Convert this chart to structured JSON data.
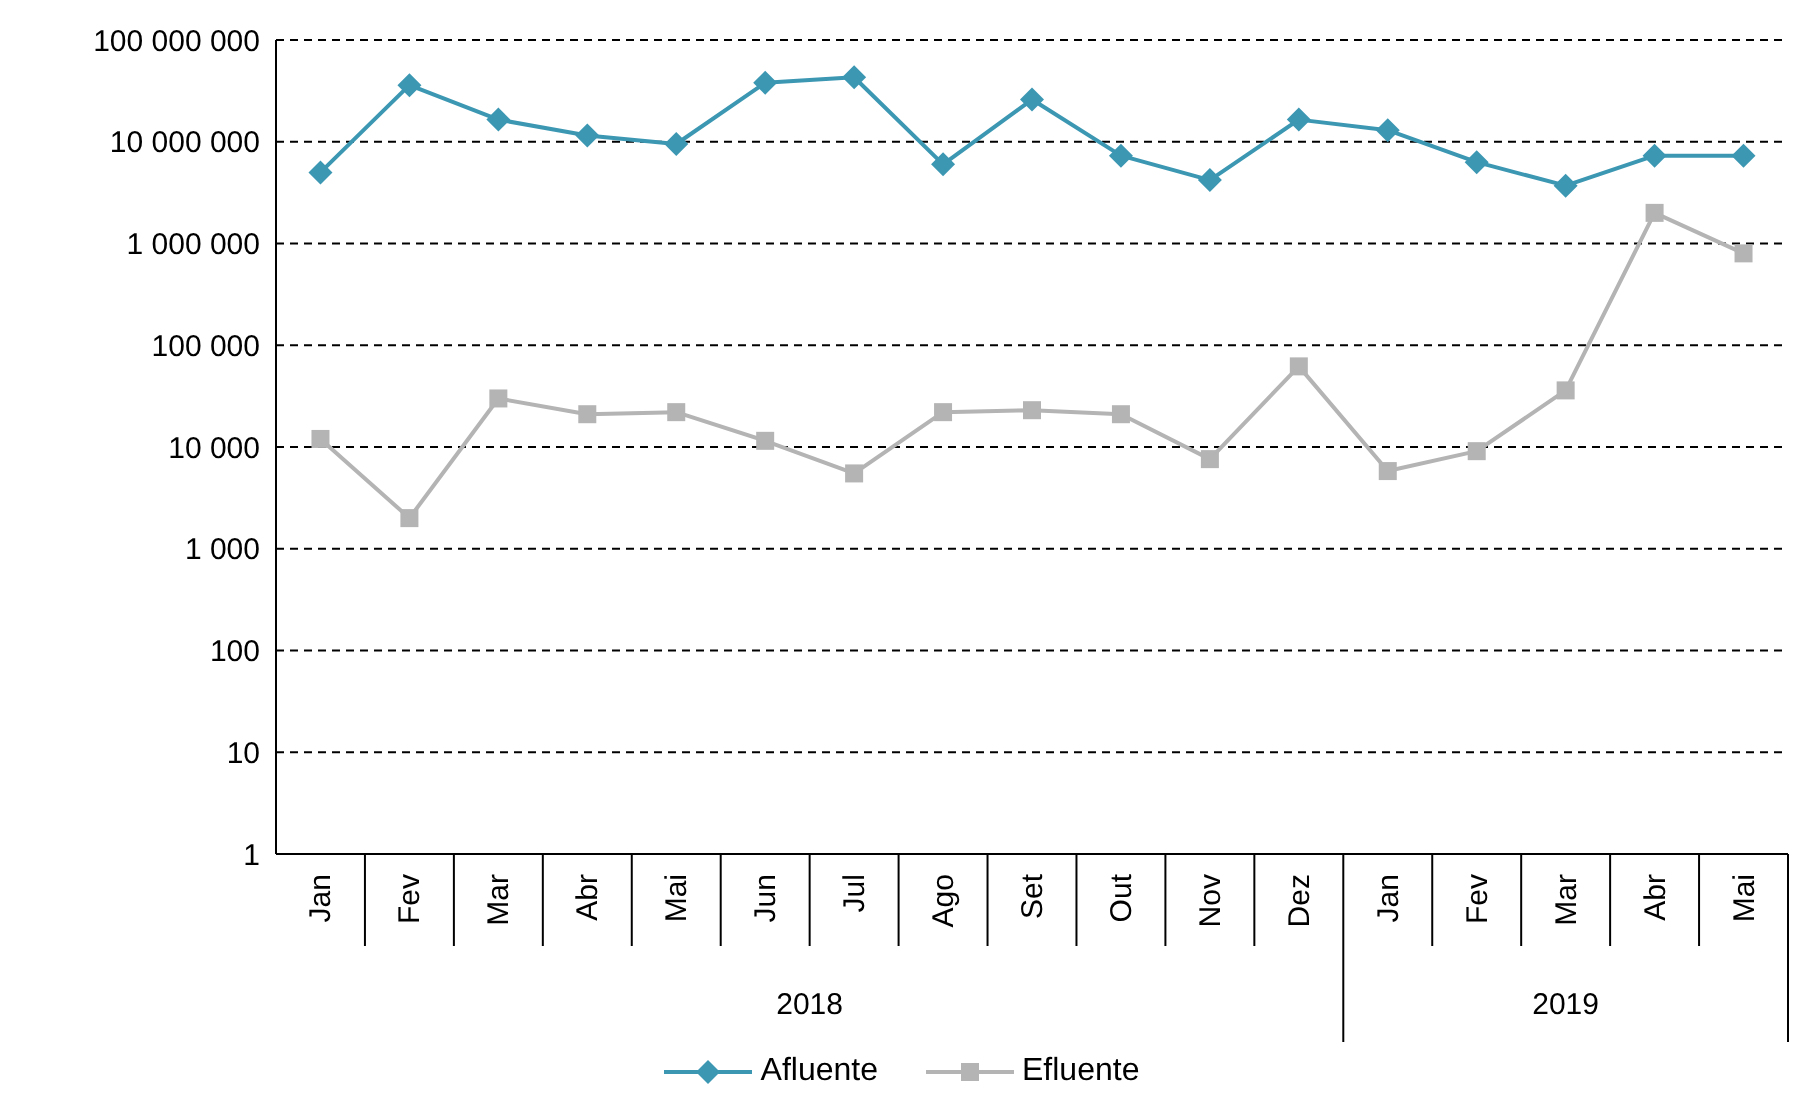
{
  "chart_data": {
    "type": "line",
    "categories": [
      "Jan",
      "Fev",
      "Mar",
      "Abr",
      "Mai",
      "Jun",
      "Jul",
      "Ago",
      "Set",
      "Out",
      "Nov",
      "Dez",
      "Jan",
      "Fev",
      "Mar",
      "Abr",
      "Mai"
    ],
    "annotations": [
      "2018",
      "2019"
    ],
    "series": [
      {
        "name": "Afluente",
        "color": "#3c97b3",
        "marker": "diamond",
        "values": [
          5000000,
          36000000,
          16500000,
          11500000,
          9500000,
          38000000,
          43000000,
          6000000,
          26000000,
          7300000,
          4200000,
          16500000,
          13000000,
          6300000,
          3700000,
          7300000,
          7300000
        ]
      },
      {
        "name": "Efluente",
        "color": "#b4b4b4",
        "marker": "square",
        "values": [
          12000,
          2000,
          30000,
          21000,
          22000,
          11500,
          5500,
          22000,
          23000,
          21000,
          7600,
          62000,
          5800,
          9100,
          36000,
          2000000,
          800000
        ]
      }
    ],
    "log": "y",
    "ylim": [
      1,
      100000000
    ],
    "yticks": [
      1,
      10,
      100,
      {
        "value": 1000,
        "label": "1 000"
      },
      {
        "value": 10000,
        "label": "10 000"
      },
      {
        "value": 100000,
        "label": "100 000"
      },
      {
        "value": 1000000,
        "label": "1 000 000"
      },
      {
        "value": 10000000,
        "label": "10 000 000"
      },
      {
        "value": 100000000,
        "label": "100 000 000"
      }
    ],
    "grid": "y",
    "legend": "bottom"
  }
}
